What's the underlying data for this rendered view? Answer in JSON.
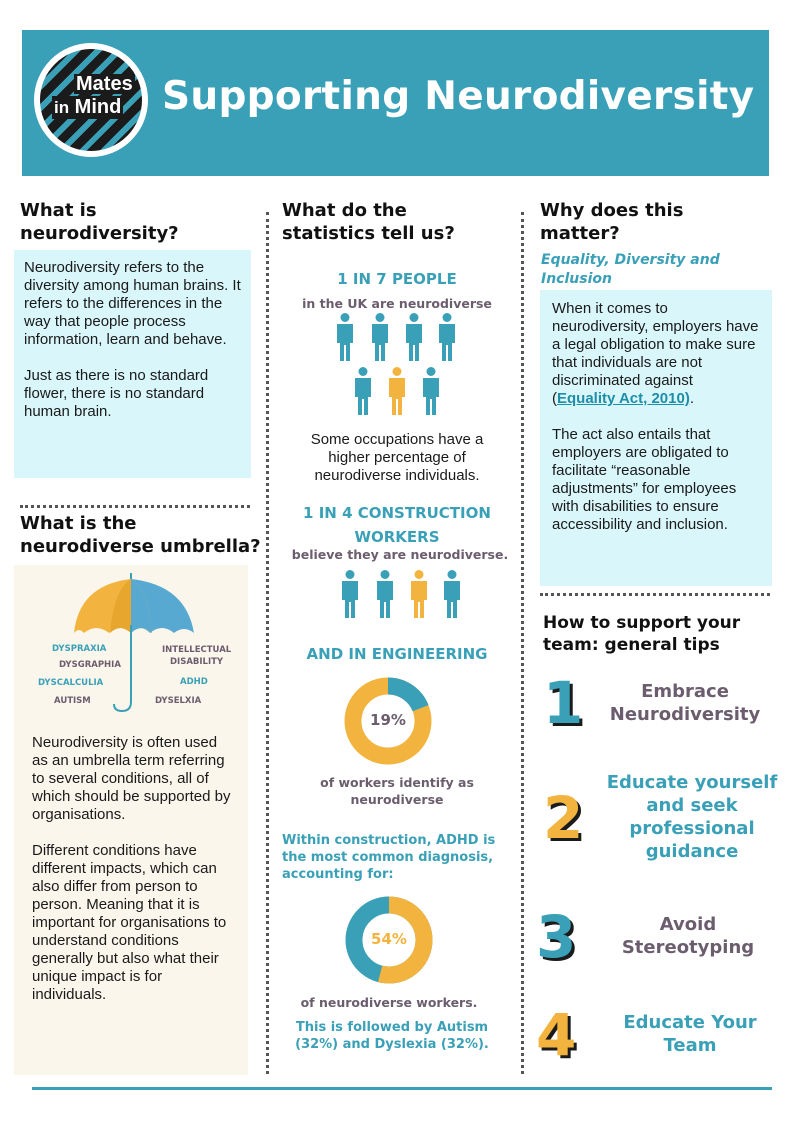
{
  "header": {
    "logo_line1": "Mates",
    "logo_in": "in",
    "logo_mind": "Mind",
    "title": "Supporting Neurodiversity",
    "color": "#3aa0b7"
  },
  "left": {
    "title1": "What is",
    "title2": "neurodiversity?",
    "p1": "Neurodiversity refers to the diversity among human brains. It refers to the differences in the way that people process information, learn and behave.",
    "p2": "Just as there is no standard flower, there is no standard human brain.",
    "umbrella_title1": "What is the",
    "umbrella_title2": "neurodiverse umbrella?",
    "umbrella_labels": [
      "DYSPRAXIA",
      "DYSGRAPHIA",
      "DYSCALCULIA",
      "AUTISM",
      "INTELLECTUAL",
      "DISABILITY",
      "ADHD",
      "DYSELXIA"
    ],
    "p3": "Neurodiversity is often used as an umbrella term referring to several conditions, all of which should be supported by organisations.",
    "p4": "Different conditions have different impacts, which can also differ from person to person. Meaning that it is important for organisations to understand conditions generally but also what their unique impact is for individuals."
  },
  "middle": {
    "title1": "What do the",
    "title2": "statistics tell us?",
    "stat1_head": "1 IN 7 PEOPLE",
    "stat1_sub": "in the UK are neurodiverse",
    "stat1_body": "Some occupations have a higher percentage of neurodiverse individuals.",
    "stat2_head1": "1 IN 4 CONSTRUCTION",
    "stat2_head2": "WORKERS",
    "stat2_sub": "believe they are neurodiverse.",
    "stat3_head": "AND IN ENGINEERING",
    "donut1_label": "19%",
    "donut1_value": 0.19,
    "stat3_sub1": "of workers identify as",
    "stat3_sub2": "neurodiverse",
    "stat4_text1": "Within construction, ADHD is",
    "stat4_text2": "the most common diagnosis,",
    "stat4_text3": "accounting for:",
    "donut2_label": "54%",
    "donut2_value": 0.54,
    "stat4_sub": "of neurodiverse workers.",
    "stat5_text1": "This is followed by Autism",
    "stat5_text2": "(32%) and Dyslexia (32%).",
    "teal": "#3aa0b7",
    "gold": "#f3b43f"
  },
  "right": {
    "title1": "Why does this",
    "title2": "matter?",
    "subtitle1": "Equality, Diversity and",
    "subtitle2": "Inclusion",
    "p1_pre": "When it comes to neurodiversity, employers have a legal obligation to make sure that individuals are not discriminated against (",
    "p1_link": "Equality Act, 2010)",
    "p1_post": ".",
    "p2": "The act also entails that employers are obligated to facilitate “reasonable adjustments” for employees with disabilities to ensure accessibility and inclusion.",
    "tips_title1": "How to support your",
    "tips_title2": "team: general tips",
    "tips": [
      {
        "num": "1",
        "line1": "Embrace",
        "line2": "Neurodiversity"
      },
      {
        "num": "2",
        "line1": "Educate yourself",
        "line2": "and seek",
        "line3": "professional",
        "line4": "guidance"
      },
      {
        "num": "3",
        "line1": "Avoid",
        "line2": "Stereotyping"
      },
      {
        "num": "4",
        "line1": "Educate Your",
        "line2": "Team"
      }
    ]
  }
}
